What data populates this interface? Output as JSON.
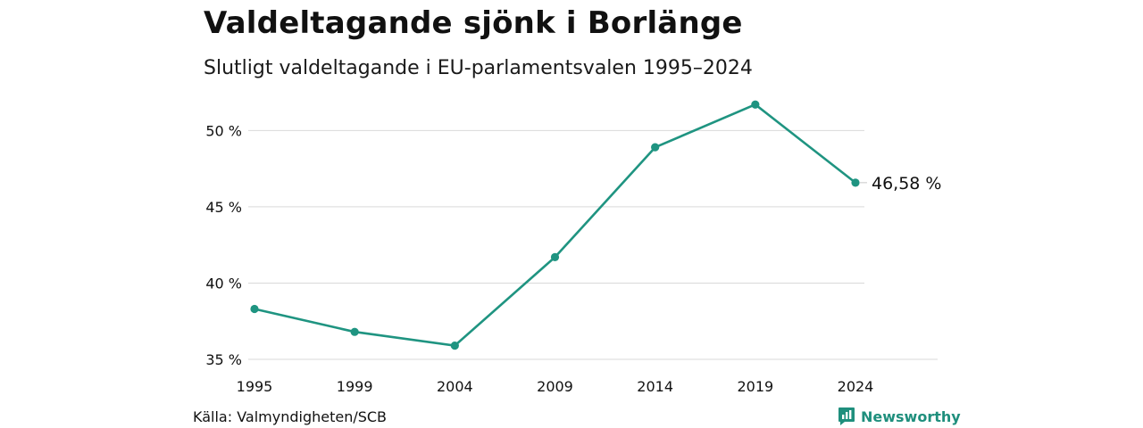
{
  "header": {
    "title": "Valdeltagande sjönk i Borlänge",
    "subtitle": "Slutligt valdeltagande i EU-parlamentsvalen 1995–2024"
  },
  "footer": {
    "source": "Källa: Valmyndigheten/SCB",
    "brand": "Newsworthy"
  },
  "colors": {
    "line": "#1f9481",
    "grid": "#d9d9d9",
    "text": "#111111"
  },
  "chart_data": {
    "type": "line",
    "x": [
      "1995",
      "1999",
      "2004",
      "2009",
      "2014",
      "2019",
      "2024"
    ],
    "series": [
      {
        "values": [
          38.3,
          36.8,
          35.9,
          41.7,
          48.9,
          51.7,
          46.58
        ]
      }
    ],
    "y_ticks": [
      "35 %",
      "40 %",
      "45 %",
      "50 %"
    ],
    "y_tick_values": [
      35,
      40,
      45,
      50
    ],
    "ylim": [
      35,
      53
    ],
    "last_value_label": "46,58 %",
    "grid": true,
    "legend": "none"
  }
}
